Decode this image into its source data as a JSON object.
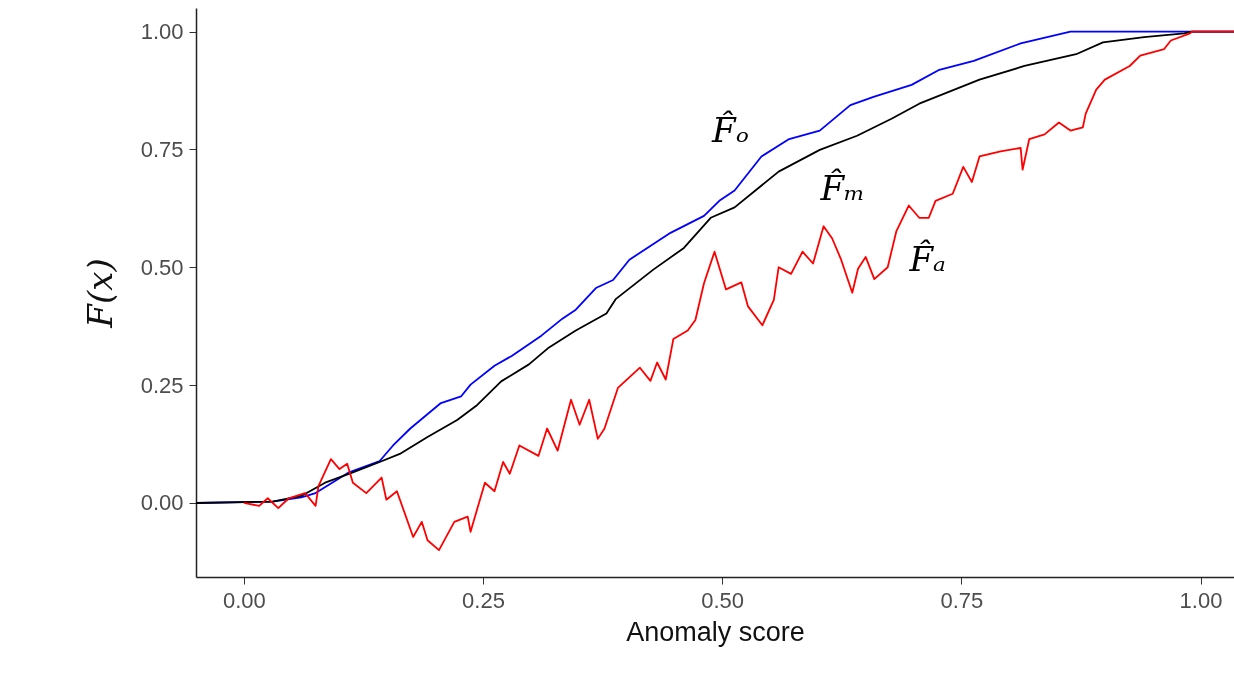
{
  "chart_data": {
    "type": "line",
    "xlabel": "Anomaly score",
    "ylabel": "F(x)",
    "xlim": [
      -0.05,
      1.035
    ],
    "ylim": [
      -0.157,
      1.05
    ],
    "xticks": [
      {
        "value": 0,
        "label": "0.00"
      },
      {
        "value": 0.25,
        "label": "0.25"
      },
      {
        "value": 0.5,
        "label": "0.50"
      },
      {
        "value": 0.75,
        "label": "0.75"
      },
      {
        "value": 1,
        "label": "1.00"
      }
    ],
    "yticks": [
      {
        "value": 0,
        "label": "0.00"
      },
      {
        "value": 0.25,
        "label": "0.25"
      },
      {
        "value": 0.5,
        "label": "0.50"
      },
      {
        "value": 0.75,
        "label": "0.75"
      },
      {
        "value": 1,
        "label": "1.00"
      }
    ],
    "series": [
      {
        "name": "F̂ₒ",
        "color": "#0000ff",
        "x": [
          -0.05,
          0.03,
          0.06,
          0.075,
          0.11,
          0.142,
          0.156,
          0.174,
          0.206,
          0.227,
          0.237,
          0.262,
          0.28,
          0.311,
          0.333,
          0.347,
          0.368,
          0.386,
          0.403,
          0.446,
          0.481,
          0.497,
          0.513,
          0.541,
          0.57,
          0.602,
          0.634,
          0.659,
          0.698,
          0.727,
          0.763,
          0.812,
          0.864,
          1.035
        ],
        "values": [
          0,
          0.003,
          0.012,
          0.021,
          0.065,
          0.089,
          0.122,
          0.158,
          0.212,
          0.226,
          0.251,
          0.291,
          0.312,
          0.355,
          0.391,
          0.41,
          0.456,
          0.473,
          0.516,
          0.573,
          0.609,
          0.641,
          0.663,
          0.735,
          0.772,
          0.79,
          0.844,
          0.862,
          0.887,
          0.919,
          0.938,
          0.975,
          1.0,
          1.0
        ]
      },
      {
        "name": "F̂ₘ",
        "color": "#000000",
        "x": [
          -0.05,
          0.03,
          0.06,
          0.085,
          0.114,
          0.142,
          0.163,
          0.192,
          0.223,
          0.244,
          0.269,
          0.298,
          0.319,
          0.347,
          0.379,
          0.389,
          0.428,
          0.46,
          0.488,
          0.513,
          0.559,
          0.602,
          0.641,
          0.677,
          0.706,
          0.769,
          0.816,
          0.87,
          0.898,
          0.941,
          0.983,
          0.991,
          1.035
        ],
        "values": [
          0,
          0.003,
          0.015,
          0.043,
          0.065,
          0.087,
          0.104,
          0.14,
          0.176,
          0.208,
          0.258,
          0.294,
          0.33,
          0.366,
          0.402,
          0.433,
          0.495,
          0.541,
          0.605,
          0.627,
          0.703,
          0.749,
          0.779,
          0.815,
          0.847,
          0.898,
          0.927,
          0.952,
          0.977,
          0.988,
          0.996,
          1.0,
          1.0
        ]
      },
      {
        "name": "F̂ₐ",
        "color": "#ff0000",
        "x": [
          0,
          0.016,
          0.025,
          0.036,
          0.047,
          0.064,
          0.075,
          0.078,
          0.091,
          0.1,
          0.108,
          0.114,
          0.128,
          0.144,
          0.149,
          0.16,
          0.177,
          0.186,
          0.192,
          0.204,
          0.22,
          0.234,
          0.237,
          0.252,
          0.262,
          0.271,
          0.278,
          0.288,
          0.308,
          0.317,
          0.328,
          0.342,
          0.351,
          0.361,
          0.37,
          0.377,
          0.391,
          0.414,
          0.425,
          0.432,
          0.441,
          0.449,
          0.464,
          0.472,
          0.481,
          0.492,
          0.504,
          0.52,
          0.527,
          0.542,
          0.554,
          0.559,
          0.572,
          0.584,
          0.595,
          0.606,
          0.615,
          0.624,
          0.636,
          0.642,
          0.65,
          0.659,
          0.673,
          0.682,
          0.695,
          0.706,
          0.716,
          0.723,
          0.741,
          0.752,
          0.761,
          0.769,
          0.791,
          0.812,
          0.814,
          0.821,
          0.837,
          0.852,
          0.864,
          0.877,
          0.88,
          0.891,
          0.9,
          0.926,
          0.937,
          0.962,
          0.969,
          0.989,
          0.991,
          1.035
        ],
        "values": [
          0,
          -0.006,
          0.01,
          -0.011,
          0.01,
          0.021,
          -0.006,
          0.036,
          0.093,
          0.072,
          0.083,
          0.043,
          0.021,
          0.054,
          0.007,
          0.025,
          -0.072,
          -0.04,
          -0.079,
          -0.1,
          -0.04,
          -0.029,
          -0.061,
          0.043,
          0.025,
          0.087,
          0.062,
          0.122,
          0.1,
          0.158,
          0.111,
          0.219,
          0.166,
          0.219,
          0.136,
          0.158,
          0.244,
          0.287,
          0.259,
          0.298,
          0.262,
          0.348,
          0.366,
          0.388,
          0.466,
          0.533,
          0.453,
          0.468,
          0.417,
          0.377,
          0.431,
          0.5,
          0.486,
          0.533,
          0.508,
          0.587,
          0.561,
          0.518,
          0.446,
          0.497,
          0.522,
          0.475,
          0.5,
          0.576,
          0.631,
          0.605,
          0.605,
          0.641,
          0.656,
          0.713,
          0.681,
          0.735,
          0.746,
          0.753,
          0.707,
          0.772,
          0.782,
          0.807,
          0.79,
          0.797,
          0.826,
          0.877,
          0.898,
          0.927,
          0.949,
          0.963,
          0.981,
          0.996,
          1.0,
          1.0
        ]
      }
    ]
  }
}
